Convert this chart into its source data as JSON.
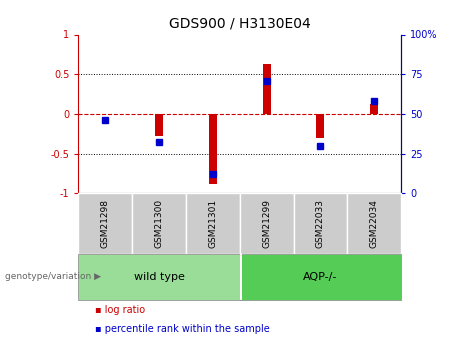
{
  "title": "GDS900 / H3130E04",
  "samples": [
    "GSM21298",
    "GSM21300",
    "GSM21301",
    "GSM21299",
    "GSM22033",
    "GSM22034"
  ],
  "log_ratio": [
    0.0,
    -0.28,
    -0.88,
    0.63,
    -0.3,
    0.13
  ],
  "percentile_rank": [
    46,
    32,
    12,
    71,
    30,
    58
  ],
  "ylim_left": [
    -1,
    1
  ],
  "yticks_left": [
    -1,
    -0.5,
    0,
    0.5,
    1
  ],
  "ytick_labels_left": [
    "-1",
    "-0.5",
    "0",
    "0.5",
    "1"
  ],
  "yticks_right_vals": [
    0,
    25,
    50,
    75,
    100
  ],
  "ytick_labels_right": [
    "0",
    "25",
    "50",
    "75",
    "100%"
  ],
  "hline_color": "#cc0000",
  "bar_color": "#cc0000",
  "dot_color": "#0000cc",
  "group1_color": "#99dd99",
  "group2_color": "#55cc55",
  "sample_box_color": "#cccccc",
  "genotype_label": "genotype/variation",
  "legend_log_ratio": "log ratio",
  "legend_percentile": "percentile rank within the sample",
  "group1_label": "wild type",
  "group2_label": "AQP-/-",
  "bar_width": 0.15
}
